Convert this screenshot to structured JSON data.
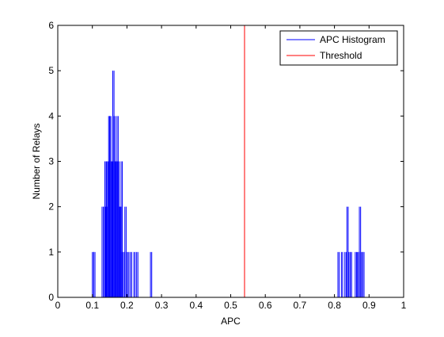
{
  "chart_data": {
    "type": "line",
    "xlabel": "APC",
    "ylabel": "Number of Relays",
    "xlim": [
      0,
      1
    ],
    "ylim": [
      0,
      6
    ],
    "xticks": [
      0,
      0.1,
      0.2,
      0.3,
      0.4,
      0.5,
      0.6,
      0.7,
      0.8,
      0.9,
      1
    ],
    "xtick_labels": [
      "0",
      "0.1",
      "0.2",
      "0.3",
      "0.4",
      "0.5",
      "0.6",
      "0.7",
      "0.8",
      "0.9",
      "1"
    ],
    "yticks": [
      0,
      1,
      2,
      3,
      4,
      5,
      6
    ],
    "ytick_labels": [
      "0",
      "1",
      "2",
      "3",
      "4",
      "5",
      "6"
    ],
    "grid": false,
    "legend_position": "top-right",
    "colors": {
      "histogram": "#0000ff",
      "threshold": "#ff0000"
    },
    "series": [
      {
        "name": "APC Histogram",
        "style": "spikes",
        "x": [
          0.1,
          0.104,
          0.128,
          0.132,
          0.136,
          0.138,
          0.141,
          0.144,
          0.147,
          0.15,
          0.153,
          0.156,
          0.159,
          0.162,
          0.165,
          0.168,
          0.171,
          0.174,
          0.177,
          0.18,
          0.183,
          0.186,
          0.19,
          0.194,
          0.198,
          0.202,
          0.21,
          0.22,
          0.228,
          0.268,
          0.81,
          0.82,
          0.83,
          0.836,
          0.841,
          0.846,
          0.86,
          0.866,
          0.872,
          0.878,
          0.882
        ],
        "y": [
          1,
          1,
          2,
          2,
          3,
          2,
          3,
          3,
          4,
          4,
          3,
          3,
          5,
          4,
          3,
          3,
          4,
          3,
          2,
          2,
          3,
          1,
          1,
          2,
          1,
          1,
          1,
          1,
          1,
          1,
          1,
          1,
          1,
          2,
          1,
          1,
          1,
          1,
          2,
          1,
          1
        ]
      },
      {
        "name": "Threshold",
        "style": "vline",
        "x": [
          0.54
        ],
        "y": [
          6
        ]
      }
    ]
  }
}
